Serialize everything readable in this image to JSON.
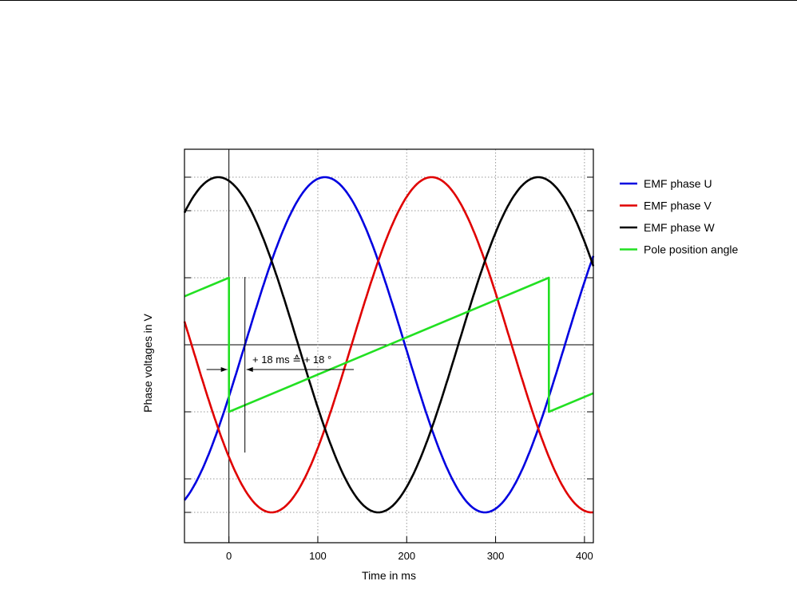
{
  "chart_data": {
    "type": "line",
    "title": "",
    "xlabel": "Time in ms",
    "ylabel": "Phase voltages in V",
    "xlim": [
      -50,
      410
    ],
    "ylim": [
      -1.3,
      1.3
    ],
    "x_ticks": [
      0,
      100,
      200,
      300,
      400
    ],
    "x_tick_labels": [
      "0",
      "100",
      "200",
      "300",
      "400"
    ],
    "y_gridlines": [
      -1.0,
      -0.8,
      -0.4,
      0.0,
      0.4,
      0.8,
      1.0
    ],
    "grid": true,
    "legend_position": "right",
    "period_ms": 360,
    "series": [
      {
        "name": "EMF phase U",
        "color": "#0000e0",
        "kind": "sine",
        "amplitude": 1.0,
        "peak_x": 108
      },
      {
        "name": "EMF phase V",
        "color": "#e00000",
        "kind": "sine",
        "amplitude": 1.0,
        "peak_x": 228
      },
      {
        "name": "EMF phase W",
        "color": "#000000",
        "kind": "sine",
        "amplitude": 1.0,
        "peak_x": -12
      },
      {
        "name": "Pole position angle",
        "color": "#22e022",
        "kind": "sawtooth",
        "low": -0.4,
        "high": 0.4,
        "reset_x": [
          0,
          360
        ]
      }
    ],
    "annotations": {
      "shift_label": "+ 18 ms ≙ + 18 °",
      "shift_ms": 18
    }
  }
}
